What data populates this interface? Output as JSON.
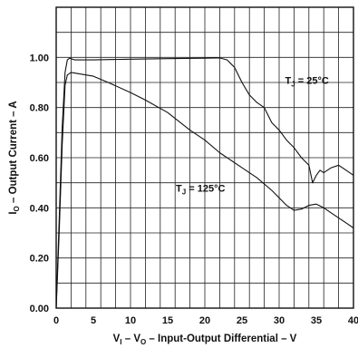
{
  "chart_data": {
    "type": "line",
    "xlabel": {
      "p1": "V",
      "s1": "I",
      "p2": " – V",
      "s2": "O",
      "p3": " – Input-Output Differential – V"
    },
    "ylabel": {
      "p1": "I",
      "s1": "O",
      "p2": " – Output Current – A"
    },
    "xlim": [
      0,
      40
    ],
    "ylim": [
      0,
      1.2
    ],
    "x_ticks": [
      "0",
      "5",
      "10",
      "15",
      "20",
      "25",
      "30",
      "35",
      "40"
    ],
    "y_ticks": [
      "0.00",
      "0.20",
      "0.40",
      "0.60",
      "0.80",
      "1.00"
    ],
    "grid": true,
    "series": [
      {
        "name": "TJ = 25°C",
        "label_main": "T",
        "label_sub": "J",
        "label_rest": " = 25°C",
        "x": [
          0,
          0.4,
          0.8,
          1.2,
          1.5,
          1.8,
          2.5,
          5,
          10,
          15,
          20,
          22,
          23,
          24,
          25,
          26,
          27,
          28,
          29,
          30,
          31,
          32,
          33,
          34,
          34.5,
          35,
          35.5,
          36,
          37,
          38,
          39,
          40
        ],
        "values": [
          0,
          0.35,
          0.72,
          0.94,
          0.99,
          0.997,
          0.99,
          0.99,
          0.993,
          0.995,
          0.997,
          0.998,
          0.99,
          0.96,
          0.9,
          0.85,
          0.82,
          0.8,
          0.74,
          0.71,
          0.67,
          0.64,
          0.6,
          0.57,
          0.5,
          0.53,
          0.55,
          0.54,
          0.56,
          0.57,
          0.55,
          0.53
        ]
      },
      {
        "name": "TJ = 125°C",
        "label_main": "T",
        "label_sub": "J",
        "label_rest": " = 125°C",
        "x": [
          0,
          0.4,
          0.8,
          1.2,
          1.5,
          2,
          3,
          5,
          7,
          10,
          12,
          15,
          18,
          20,
          22,
          25,
          27,
          29,
          30,
          31,
          32,
          33,
          34,
          35,
          36,
          37,
          38,
          39,
          40
        ],
        "values": [
          0,
          0.3,
          0.65,
          0.89,
          0.93,
          0.94,
          0.935,
          0.925,
          0.9,
          0.86,
          0.83,
          0.78,
          0.71,
          0.67,
          0.62,
          0.56,
          0.52,
          0.47,
          0.44,
          0.41,
          0.39,
          0.395,
          0.41,
          0.415,
          0.4,
          0.38,
          0.36,
          0.34,
          0.32
        ]
      }
    ]
  }
}
